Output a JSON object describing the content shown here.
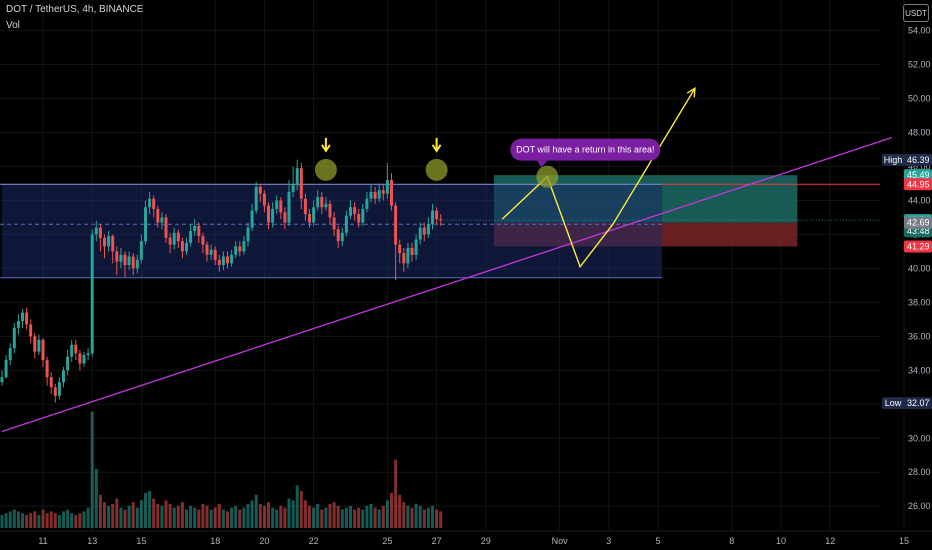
{
  "header": {
    "title": "DOT / TetherUS, 4h, BINANCE",
    "volume_label": "Vol",
    "currency": "USDT"
  },
  "colors": {
    "up": "#26a69a",
    "down": "#ef5350",
    "box_fill": "#1a2a66",
    "box_border": "#3f51b5",
    "trendline": "#c039d9",
    "projection": "#ffeb3b",
    "target_zone": "#1b6b63",
    "stop_zone": "#7a2428",
    "note_bg": "#7b1fa2"
  },
  "chart_data": {
    "type": "candlestick",
    "symbol": "DOT / TetherUS",
    "interval": "4h",
    "exchange": "BINANCE",
    "y_axis": {
      "range": [
        24.6,
        55.8
      ],
      "ticks": [
        "26.00",
        "28.00",
        "30.00",
        "32.00",
        "34.00",
        "36.00",
        "38.00",
        "40.00",
        "42.00",
        "44.00",
        "46.00",
        "48.00",
        "50.00",
        "52.00",
        "54.00"
      ]
    },
    "x_axis": {
      "ticks": [
        {
          "label": "11",
          "t": 10
        },
        {
          "label": "13",
          "t": 22
        },
        {
          "label": "15",
          "t": 34
        },
        {
          "label": "18",
          "t": 52
        },
        {
          "label": "20",
          "t": 64
        },
        {
          "label": "22",
          "t": 76
        },
        {
          "label": "25",
          "t": 94
        },
        {
          "label": "27",
          "t": 106
        },
        {
          "label": "29",
          "t": 118
        },
        {
          "label": "Nov",
          "t": 136
        },
        {
          "label": "3",
          "t": 148
        },
        {
          "label": "5",
          "t": 160
        },
        {
          "label": "8",
          "t": 178
        },
        {
          "label": "10",
          "t": 190
        },
        {
          "label": "12",
          "t": 202
        },
        {
          "label": "15",
          "t": 220
        }
      ]
    },
    "price_tags": [
      {
        "label": "High",
        "value": "46.39",
        "kind": "high"
      },
      {
        "value": "45.49",
        "kind": "target"
      },
      {
        "value": "44.95",
        "kind": "level"
      },
      {
        "value": "42.84",
        "kind": "current"
      },
      {
        "value": "43:48",
        "kind": "countdown"
      },
      {
        "value": "42.69",
        "kind": "entry"
      },
      {
        "value": "41.29",
        "kind": "stop"
      },
      {
        "label": "Low",
        "value": "32.07",
        "kind": "low"
      }
    ],
    "range_box": {
      "top": 44.95,
      "bottom": 39.45,
      "mid": 42.6,
      "t_start": 0,
      "t_end": 161
    },
    "trendline": {
      "t1": 0,
      "p1": 30.4,
      "t2": 217,
      "p2": 47.7
    },
    "projection_path": [
      [
        122,
        42.9
      ],
      [
        133,
        45.4
      ],
      [
        141,
        40.1
      ],
      [
        149,
        42.6
      ],
      [
        169,
        50.6
      ]
    ],
    "position_zone": {
      "t_start": 120,
      "t_end": 194,
      "target": 45.49,
      "entry": 42.69,
      "stop": 41.29
    },
    "annotation": {
      "text": "DOT will have a return in this area!",
      "t": 133,
      "p": 45.4
    },
    "markers": [
      {
        "t": 79,
        "p": 45.8
      },
      {
        "t": 106,
        "p": 45.8
      }
    ],
    "candles": [
      [
        33.3,
        33.6,
        34.0,
        33.1
      ],
      [
        33.6,
        34.6,
        34.9,
        33.5
      ],
      [
        34.6,
        35.3,
        35.6,
        34.3
      ],
      [
        35.3,
        36.5,
        36.8,
        35.0
      ],
      [
        36.5,
        36.9,
        37.3,
        36.1
      ],
      [
        36.9,
        37.4,
        37.6,
        36.5
      ],
      [
        37.4,
        36.7,
        37.7,
        36.4
      ],
      [
        36.7,
        36.0,
        37.0,
        35.6
      ],
      [
        36.0,
        35.1,
        36.2,
        34.7
      ],
      [
        35.1,
        35.8,
        36.1,
        34.9
      ],
      [
        35.8,
        34.6,
        35.9,
        34.2
      ],
      [
        34.6,
        33.6,
        34.8,
        33.1
      ],
      [
        33.6,
        33.0,
        33.9,
        32.6
      ],
      [
        33.0,
        32.5,
        33.2,
        32.1
      ],
      [
        32.5,
        33.3,
        33.6,
        32.3
      ],
      [
        33.3,
        34.0,
        34.2,
        33.0
      ],
      [
        34.0,
        34.8,
        35.2,
        33.7
      ],
      [
        34.8,
        35.5,
        35.8,
        34.5
      ],
      [
        35.5,
        35.0,
        35.8,
        34.6
      ],
      [
        35.0,
        34.4,
        35.2,
        34.0
      ],
      [
        34.4,
        34.9,
        35.1,
        34.2
      ],
      [
        34.9,
        35.0,
        35.3,
        34.6
      ],
      [
        35.0,
        42.0,
        42.3,
        34.8
      ],
      [
        42.0,
        42.4,
        42.8,
        41.6
      ],
      [
        42.4,
        41.8,
        42.6,
        41.0
      ],
      [
        41.8,
        41.3,
        42.0,
        40.6
      ],
      [
        41.3,
        41.9,
        42.2,
        41.0
      ],
      [
        41.9,
        41.0,
        42.0,
        40.3
      ],
      [
        41.0,
        40.4,
        41.3,
        39.6
      ],
      [
        40.4,
        40.8,
        41.2,
        40.0
      ],
      [
        40.8,
        40.2,
        41.0,
        39.5
      ],
      [
        40.2,
        40.7,
        41.0,
        39.9
      ],
      [
        40.7,
        40.0,
        40.9,
        39.6
      ],
      [
        40.0,
        40.5,
        40.8,
        39.7
      ],
      [
        40.5,
        41.6,
        42.0,
        40.3
      ],
      [
        41.6,
        43.6,
        44.0,
        41.4
      ],
      [
        43.6,
        44.1,
        44.5,
        43.2
      ],
      [
        44.1,
        43.5,
        44.3,
        43.0
      ],
      [
        43.5,
        42.7,
        43.7,
        42.4
      ],
      [
        42.7,
        43.0,
        43.3,
        42.3
      ],
      [
        43.0,
        41.8,
        43.2,
        41.5
      ],
      [
        41.8,
        41.4,
        42.1,
        40.9
      ],
      [
        41.4,
        42.1,
        42.4,
        41.1
      ],
      [
        42.1,
        41.6,
        42.3,
        41.2
      ],
      [
        41.6,
        41.0,
        41.8,
        40.6
      ],
      [
        41.0,
        41.5,
        41.8,
        40.8
      ],
      [
        41.5,
        42.2,
        42.6,
        41.3
      ],
      [
        42.2,
        42.5,
        42.9,
        41.9
      ],
      [
        42.5,
        41.9,
        42.7,
        41.5
      ],
      [
        41.9,
        41.4,
        42.1,
        40.9
      ],
      [
        41.4,
        40.8,
        41.6,
        40.4
      ],
      [
        40.8,
        41.1,
        41.4,
        40.5
      ],
      [
        41.1,
        40.5,
        41.3,
        40.2
      ],
      [
        40.5,
        40.2,
        40.8,
        39.8
      ],
      [
        40.2,
        40.7,
        41.0,
        39.9
      ],
      [
        40.7,
        40.3,
        41.0,
        40.0
      ],
      [
        40.3,
        40.8,
        41.1,
        40.1
      ],
      [
        40.8,
        41.3,
        41.6,
        40.6
      ],
      [
        41.3,
        41.0,
        41.6,
        40.7
      ],
      [
        41.0,
        41.6,
        41.9,
        40.8
      ],
      [
        41.6,
        42.4,
        42.7,
        41.3
      ],
      [
        42.4,
        43.4,
        43.8,
        42.2
      ],
      [
        43.4,
        44.8,
        45.1,
        43.2
      ],
      [
        44.8,
        44.4,
        45.0,
        43.9
      ],
      [
        44.4,
        43.7,
        44.6,
        43.3
      ],
      [
        43.7,
        42.7,
        43.9,
        42.3
      ],
      [
        42.7,
        43.5,
        43.9,
        42.4
      ],
      [
        43.5,
        44.0,
        44.3,
        43.2
      ],
      [
        44.0,
        43.3,
        44.2,
        42.9
      ],
      [
        43.3,
        42.7,
        43.6,
        42.3
      ],
      [
        42.7,
        44.5,
        45.2,
        42.5
      ],
      [
        44.5,
        44.9,
        46.0,
        44.2
      ],
      [
        44.9,
        45.9,
        46.4,
        44.6
      ],
      [
        45.9,
        44.1,
        46.2,
        43.5
      ],
      [
        44.1,
        43.2,
        44.4,
        42.8
      ],
      [
        43.2,
        42.7,
        43.5,
        42.4
      ],
      [
        42.7,
        43.6,
        44.0,
        42.5
      ],
      [
        43.6,
        44.2,
        44.6,
        43.4
      ],
      [
        44.2,
        43.6,
        44.5,
        43.2
      ],
      [
        43.6,
        43.8,
        44.2,
        43.4
      ],
      [
        43.8,
        43.0,
        44.0,
        42.6
      ],
      [
        43.0,
        42.3,
        43.3,
        41.9
      ],
      [
        42.3,
        41.6,
        42.5,
        41.2
      ],
      [
        41.6,
        42.1,
        42.4,
        41.3
      ],
      [
        42.1,
        43.1,
        43.4,
        41.9
      ],
      [
        43.1,
        43.6,
        44.0,
        42.9
      ],
      [
        43.6,
        43.2,
        43.9,
        42.8
      ],
      [
        43.2,
        42.7,
        43.5,
        42.4
      ],
      [
        42.7,
        43.5,
        43.8,
        42.5
      ],
      [
        43.5,
        44.1,
        44.5,
        43.3
      ],
      [
        44.1,
        44.5,
        44.9,
        43.9
      ],
      [
        44.5,
        44.1,
        44.8,
        43.8
      ],
      [
        44.1,
        44.6,
        45.0,
        43.9
      ],
      [
        44.6,
        44.4,
        45.0,
        44.0
      ],
      [
        44.4,
        45.2,
        46.2,
        44.1
      ],
      [
        45.2,
        43.7,
        45.6,
        43.4
      ],
      [
        43.7,
        41.4,
        43.9,
        39.3
      ],
      [
        41.4,
        40.9,
        41.7,
        40.3
      ],
      [
        40.9,
        40.3,
        41.2,
        39.8
      ],
      [
        40.3,
        41.2,
        41.5,
        40.0
      ],
      [
        41.2,
        40.8,
        41.5,
        40.4
      ],
      [
        40.8,
        41.7,
        42.0,
        40.5
      ],
      [
        41.7,
        42.4,
        42.7,
        41.4
      ],
      [
        42.4,
        42.0,
        42.7,
        41.6
      ],
      [
        42.0,
        42.6,
        43.0,
        41.8
      ],
      [
        42.6,
        43.4,
        43.8,
        42.3
      ],
      [
        43.4,
        42.9,
        43.6,
        42.6
      ],
      [
        42.9,
        42.84,
        43.2,
        42.5
      ]
    ],
    "volumes": [
      0.7,
      0.8,
      0.9,
      1.0,
      0.9,
      0.8,
      0.7,
      0.8,
      0.9,
      0.7,
      1.0,
      0.8,
      0.9,
      0.8,
      0.7,
      0.9,
      1.0,
      0.8,
      0.7,
      0.8,
      0.9,
      1.1,
      6.3,
      3.2,
      1.8,
      1.4,
      1.2,
      1.3,
      1.6,
      1.1,
      1.0,
      1.2,
      1.4,
      1.1,
      1.5,
      1.9,
      2.0,
      1.6,
      1.3,
      1.2,
      1.5,
      1.3,
      1.1,
      1.2,
      1.4,
      1.0,
      1.2,
      1.1,
      1.0,
      1.3,
      1.2,
      1.0,
      1.1,
      1.3,
      1.0,
      0.9,
      1.1,
      1.2,
      1.0,
      1.1,
      1.3,
      1.5,
      1.8,
      1.3,
      1.2,
      1.4,
      1.1,
      1.0,
      1.2,
      1.1,
      1.6,
      1.5,
      2.3,
      2.0,
      1.5,
      1.2,
      1.1,
      1.3,
      1.0,
      1.1,
      1.3,
      1.4,
      1.2,
      1.0,
      1.1,
      1.2,
      1.0,
      1.1,
      1.0,
      1.2,
      1.3,
      1.1,
      1.0,
      1.2,
      1.5,
      1.9,
      3.7,
      1.8,
      1.4,
      1.2,
      1.1,
      1.3,
      1.2,
      1.0,
      1.1,
      1.2,
      1.0,
      0.9
    ]
  }
}
